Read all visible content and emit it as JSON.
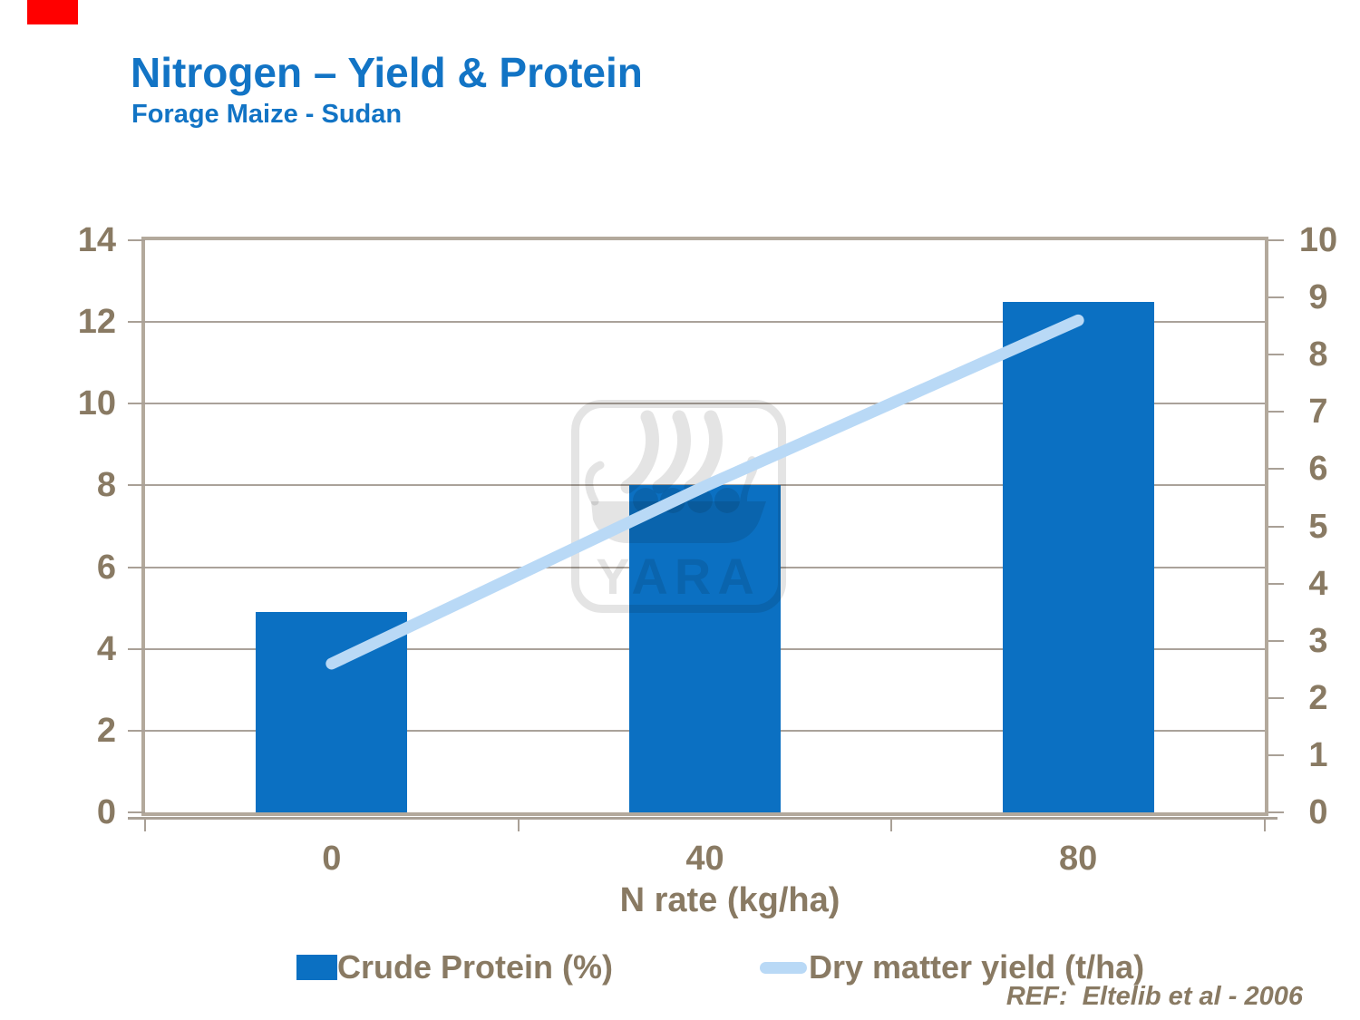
{
  "chart_data": {
    "type": "combo-bar-line",
    "title": "Nitrogen – Yield & Protein",
    "subtitle": "Forage Maize - Sudan",
    "categories": [
      "0",
      "40",
      "80"
    ],
    "series": [
      {
        "name": "Crude Protein (%)",
        "type": "bar",
        "axis": "left",
        "values": [
          4.9,
          8.0,
          12.5
        ]
      },
      {
        "name": "Dry matter yield (t/ha)",
        "type": "line",
        "axis": "right",
        "values": [
          2.6,
          5.7,
          8.6
        ]
      }
    ],
    "xlabel": "N rate (kg/ha)",
    "left_axis": {
      "min": 0,
      "max": 14,
      "ticks": [
        14,
        12,
        10,
        8,
        6,
        4,
        2,
        0
      ]
    },
    "right_axis": {
      "min": 0,
      "max": 10,
      "ticks": [
        10,
        9,
        8,
        7,
        6,
        5,
        4,
        3,
        2,
        1,
        0
      ]
    },
    "gridlines": "horizontal at left-axis intervals of 2",
    "legend_position": "bottom"
  },
  "reference": "REF:  Eltelib et al - 2006",
  "watermark_text": "YARA",
  "colors": {
    "title_blue": "#1274c5",
    "bar_blue": "#0b70c2",
    "line_light_blue": "#b9d9f6",
    "axis_text_taupe": "#897a63",
    "frame_taupe": "#b3a99c",
    "gridline": "#aaa29a",
    "red_marker": "#ff0000"
  }
}
